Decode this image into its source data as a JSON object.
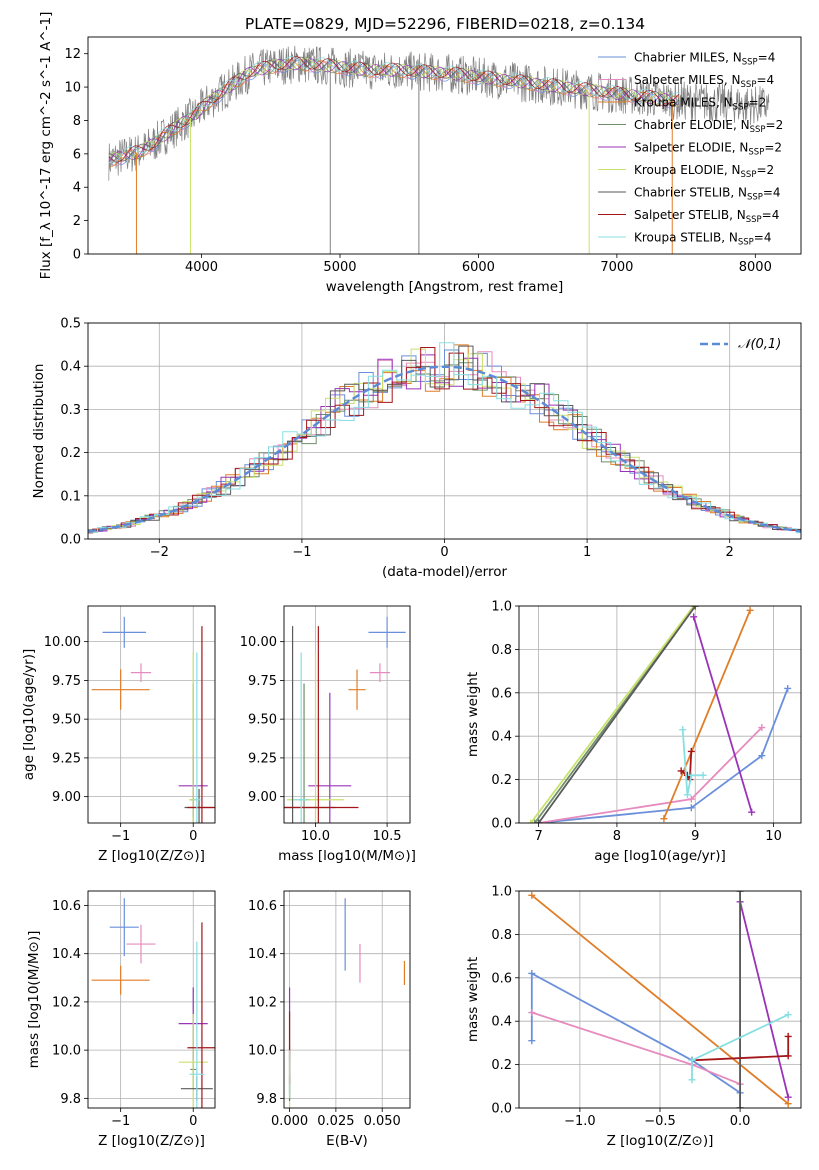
{
  "figure": {
    "title": "PLATE=0829, MJD=52296, FIBERID=0218, z=0.134"
  },
  "colors": {
    "Chabrier MILES": "#6a8fdb",
    "Salpeter MILES": "#e58bbf",
    "Kroupa MILES": "#e07d27",
    "Chabrier ELODIE": "#6f8f6a",
    "Salpeter ELODIE": "#9b33b8",
    "Kroupa ELODIE": "#c9e26b",
    "Chabrier STELIB": "#5a5a5a",
    "Salpeter STELIB": "#a3171b",
    "Kroupa STELIB": "#87dfe3",
    "data": "#808080",
    "gaussian": "#5b8ad6",
    "grid": "#b0b0b0"
  },
  "chart_data": [
    {
      "id": "spectrum",
      "type": "line",
      "xlabel": "wavelength [Angstrom, rest frame]",
      "ylabel": "Flux [f_λ 10^-17 erg cm^-2 s^-1 A^-1]",
      "xlim": [
        3180,
        8330
      ],
      "ylim": [
        0,
        13
      ],
      "xticks": [
        4000,
        5000,
        6000,
        7000,
        8000
      ],
      "yticks": [
        0,
        2,
        4,
        6,
        8,
        10,
        12
      ],
      "grid": false,
      "legend_position": "right",
      "legend": [
        {
          "name": "Chabrier MILES",
          "nssp": "4"
        },
        {
          "name": "Salpeter MILES",
          "nssp": "4"
        },
        {
          "name": "Kroupa MILES",
          "nssp": "2"
        },
        {
          "name": "Chabrier ELODIE",
          "nssp": "2"
        },
        {
          "name": "Salpeter ELODIE",
          "nssp": "2"
        },
        {
          "name": "Kroupa ELODIE",
          "nssp": "2"
        },
        {
          "name": "Chabrier STELIB",
          "nssp": "4"
        },
        {
          "name": "Salpeter STELIB",
          "nssp": "4"
        },
        {
          "name": "Kroupa STELIB",
          "nssp": "4"
        }
      ],
      "continuum": {
        "x": [
          3330,
          3450,
          3550,
          3650,
          3750,
          3850,
          3950,
          4050,
          4150,
          4250,
          4350,
          4450,
          4550,
          4700,
          4850,
          5000,
          5200,
          5400,
          5600,
          5800,
          6000,
          6200,
          6400,
          6600,
          6800,
          7000,
          7200,
          7400,
          7600,
          7800,
          8000,
          8100
        ],
        "y": [
          5.6,
          5.9,
          6.1,
          6.6,
          7.2,
          7.8,
          8.3,
          9.1,
          9.7,
          10.3,
          10.9,
          11.1,
          11.3,
          11.4,
          11.3,
          11.2,
          11.0,
          11.0,
          10.9,
          10.8,
          10.6,
          10.4,
          10.2,
          10.0,
          9.8,
          9.6,
          9.4,
          9.2,
          9.1,
          9.0,
          8.9,
          8.9
        ]
      }
    },
    {
      "id": "residuals",
      "type": "line",
      "xlabel": "(data-model)/error",
      "ylabel": "Normed distribution",
      "xlim": [
        -2.5,
        2.5
      ],
      "ylim": [
        0,
        0.5
      ],
      "xticks": [
        -2,
        -1,
        0,
        1,
        2
      ],
      "yticks": [
        0.0,
        0.1,
        0.2,
        0.3,
        0.4,
        0.5
      ],
      "grid": true,
      "legend_position": "top-right",
      "legend_label": "𝒩(0,1)",
      "gaussian": {
        "mu": 0,
        "sigma": 1
      }
    },
    {
      "id": "age_vs_Z",
      "type": "scatter",
      "xlabel": "Z [log10(Z/Z⊙)]",
      "ylabel": "age  [log10(age/yr)]",
      "xlim": [
        -1.45,
        0.3
      ],
      "ylim": [
        8.83,
        10.23
      ],
      "xticks": [
        -1,
        0
      ],
      "yticks": [
        9.0,
        9.25,
        9.5,
        9.75,
        10.0
      ],
      "grid": true,
      "points": [
        {
          "model": "Chabrier MILES",
          "x": -0.95,
          "y": 10.06,
          "xerr": 0.3,
          "yerr": 0.1
        },
        {
          "model": "Salpeter MILES",
          "x": -0.72,
          "y": 9.8,
          "xerr": 0.14,
          "yerr": 0.06
        },
        {
          "model": "Kroupa MILES",
          "x": -1.0,
          "y": 9.69,
          "xerr": 0.4,
          "yerr": 0.13
        },
        {
          "model": "Chabrier ELODIE",
          "x": 0.0,
          "y": 8.98,
          "xerr": 0.05,
          "yerr": 0.75
        },
        {
          "model": "Salpeter ELODIE",
          "x": 0.0,
          "y": 9.07,
          "xerr": 0.2,
          "yerr": 0.2
        },
        {
          "model": "Kroupa ELODIE",
          "x": 0.0,
          "y": 8.98,
          "xerr": 0.05,
          "yerr": 0.95
        },
        {
          "model": "Chabrier STELIB",
          "x": 0.08,
          "y": 8.93,
          "xerr": 0.2,
          "yerr": 0.12
        },
        {
          "model": "Salpeter STELIB",
          "x": 0.12,
          "y": 8.93,
          "xerr": 0.2,
          "yerr": 1.17
        },
        {
          "model": "Kroupa STELIB",
          "x": 0.05,
          "y": 8.98,
          "xerr": 0.05,
          "yerr": 0.95
        }
      ]
    },
    {
      "id": "age_vs_mass",
      "type": "scatter",
      "xlabel": "mass [log10(M/M⊙)]",
      "ylabel": "",
      "xlim": [
        9.78,
        10.66
      ],
      "ylim": [
        8.83,
        10.23
      ],
      "xticks": [
        10.0,
        10.5
      ],
      "yticks": [
        9.0,
        9.25,
        9.5,
        9.75,
        10.0
      ],
      "grid": true,
      "points": [
        {
          "model": "Chabrier MILES",
          "x": 10.5,
          "y": 10.06,
          "xerr": 0.13,
          "yerr": 0.1
        },
        {
          "model": "Salpeter MILES",
          "x": 10.45,
          "y": 9.8,
          "xerr": 0.07,
          "yerr": 0.06
        },
        {
          "model": "Kroupa MILES",
          "x": 10.29,
          "y": 9.69,
          "xerr": 0.06,
          "yerr": 0.13
        },
        {
          "model": "Chabrier ELODIE",
          "x": 9.92,
          "y": 8.98,
          "xerr": 0.04,
          "yerr": 0.75
        },
        {
          "model": "Salpeter ELODIE",
          "x": 10.1,
          "y": 9.07,
          "xerr": 0.15,
          "yerr": 0.6
        },
        {
          "model": "Kroupa ELODIE",
          "x": 10.0,
          "y": 8.98,
          "xerr": 0.2,
          "yerr": 0.95
        },
        {
          "model": "Chabrier STELIB",
          "x": 9.84,
          "y": 8.93,
          "xerr": 0.3,
          "yerr": 1.17
        },
        {
          "model": "Salpeter STELIB",
          "x": 10.02,
          "y": 8.93,
          "xerr": 0.28,
          "yerr": 1.17
        },
        {
          "model": "Kroupa STELIB",
          "x": 9.9,
          "y": 8.98,
          "xerr": 0.05,
          "yerr": 0.95
        }
      ]
    },
    {
      "id": "weight_vs_age",
      "type": "line",
      "xlabel": "age  [log10(age/yr)]",
      "ylabel": "mass weight",
      "xlim": [
        6.75,
        10.35
      ],
      "ylim": [
        0,
        1
      ],
      "xticks": [
        7,
        8,
        9,
        10
      ],
      "yticks": [
        0.0,
        0.2,
        0.4,
        0.6,
        0.8,
        1.0
      ],
      "grid": true,
      "series": [
        {
          "model": "Chabrier MILES",
          "x": [
            7.0,
            8.95,
            9.85,
            10.18
          ],
          "y": [
            0.0,
            0.07,
            0.31,
            0.62
          ]
        },
        {
          "model": "Salpeter MILES",
          "x": [
            7.0,
            8.95,
            9.85
          ],
          "y": [
            0.0,
            0.11,
            0.44
          ]
        },
        {
          "model": "Kroupa MILES",
          "x": [
            8.6,
            9.7
          ],
          "y": [
            0.02,
            0.98
          ]
        },
        {
          "model": "Chabrier ELODIE",
          "x": [
            6.95,
            9.0
          ],
          "y": [
            0.0,
            1.0
          ]
        },
        {
          "model": "Salpeter ELODIE",
          "x": [
            8.98,
            9.72
          ],
          "y": [
            0.95,
            0.05
          ]
        },
        {
          "model": "Kroupa ELODIE",
          "x": [
            6.9,
            8.98
          ],
          "y": [
            0.0,
            1.0
          ]
        },
        {
          "model": "Chabrier STELIB",
          "x": [
            7.0,
            9.0
          ],
          "y": [
            0.0,
            1.0
          ]
        },
        {
          "model": "Salpeter STELIB",
          "x": [
            8.82,
            8.9,
            8.93,
            8.95
          ],
          "y": [
            0.24,
            0.22,
            0.2,
            0.33
          ]
        },
        {
          "model": "Kroupa STELIB",
          "x": [
            8.84,
            8.9,
            8.95,
            9.1
          ],
          "y": [
            0.43,
            0.13,
            0.22,
            0.22
          ]
        }
      ]
    },
    {
      "id": "mass_vs_Z",
      "type": "scatter",
      "xlabel": "Z [log10(Z/Z⊙)]",
      "ylabel": "mass [log10(M/M⊙)]",
      "xlim": [
        -1.45,
        0.3
      ],
      "ylim": [
        9.76,
        10.66
      ],
      "xticks": [
        -1,
        0
      ],
      "yticks": [
        9.8,
        10.0,
        10.2,
        10.4,
        10.6
      ],
      "grid": true,
      "points": [
        {
          "model": "Chabrier MILES",
          "x": -0.95,
          "y": 10.51,
          "xerr": 0.2,
          "yerr": 0.12
        },
        {
          "model": "Salpeter MILES",
          "x": -0.72,
          "y": 10.44,
          "xerr": 0.2,
          "yerr": 0.08
        },
        {
          "model": "Kroupa MILES",
          "x": -1.0,
          "y": 10.29,
          "xerr": 0.4,
          "yerr": 0.06
        },
        {
          "model": "Chabrier ELODIE",
          "x": 0.0,
          "y": 9.92,
          "xerr": 0.04,
          "yerr": 0.08
        },
        {
          "model": "Salpeter ELODIE",
          "x": 0.0,
          "y": 10.11,
          "xerr": 0.2,
          "yerr": 0.15
        },
        {
          "model": "Kroupa ELODIE",
          "x": 0.0,
          "y": 9.95,
          "xerr": 0.2,
          "yerr": 0.2
        },
        {
          "model": "Chabrier STELIB",
          "x": 0.05,
          "y": 9.84,
          "xerr": 0.22,
          "yerr": 0.05
        },
        {
          "model": "Salpeter STELIB",
          "x": 0.12,
          "y": 10.01,
          "xerr": 0.2,
          "yerr": 0.52
        },
        {
          "model": "Kroupa STELIB",
          "x": 0.05,
          "y": 9.9,
          "xerr": 0.1,
          "yerr": 0.55
        }
      ]
    },
    {
      "id": "mass_vs_ebv",
      "type": "scatter",
      "xlabel": "E(B-V)",
      "ylabel": "",
      "xlim": [
        -0.003,
        0.065
      ],
      "ylim": [
        9.76,
        10.66
      ],
      "xticks": [
        0.0,
        0.025,
        0.05
      ],
      "yticks": [
        9.8,
        10.0,
        10.2,
        10.4,
        10.6
      ],
      "grid": true,
      "points": [
        {
          "model": "Chabrier MILES",
          "x": 0.03,
          "y": 10.48,
          "xerr": 0.0,
          "yerr": 0.15
        },
        {
          "model": "Salpeter MILES",
          "x": 0.038,
          "y": 10.36,
          "xerr": 0.0,
          "yerr": 0.08
        },
        {
          "model": "Kroupa MILES",
          "x": 0.062,
          "y": 10.32,
          "xerr": 0.0,
          "yerr": 0.05
        },
        {
          "model": "Chabrier ELODIE",
          "x": 0.0,
          "y": 9.92,
          "xerr": 0.0,
          "yerr": 0.1
        },
        {
          "model": "Salpeter ELODIE",
          "x": 0.0,
          "y": 10.11,
          "xerr": 0.0,
          "yerr": 0.15
        },
        {
          "model": "Kroupa ELODIE",
          "x": 0.0,
          "y": 9.95,
          "xerr": 0.0,
          "yerr": 0.2
        },
        {
          "model": "Chabrier STELIB",
          "x": 0.0,
          "y": 9.84,
          "xerr": 0.0,
          "yerr": 0.05
        },
        {
          "model": "Salpeter STELIB",
          "x": 0.0,
          "y": 10.01,
          "xerr": 0.0,
          "yerr": 0.15
        },
        {
          "model": "Kroupa STELIB",
          "x": 0.0,
          "y": 9.9,
          "xerr": 0.0,
          "yerr": 0.1
        }
      ]
    },
    {
      "id": "weight_vs_Z",
      "type": "line",
      "xlabel": "Z [log10(Z/Z⊙)]",
      "ylabel": "mass weight",
      "xlim": [
        -1.38,
        0.38
      ],
      "ylim": [
        0,
        1
      ],
      "xticks": [
        -1.0,
        -0.5,
        0.0
      ],
      "yticks": [
        0.0,
        0.2,
        0.4,
        0.6,
        0.8,
        1.0
      ],
      "grid": true,
      "series": [
        {
          "model": "Chabrier MILES",
          "x": [
            -1.3,
            -1.3,
            -0.3,
            0.0
          ],
          "y": [
            0.31,
            0.62,
            0.22,
            0.07
          ]
        },
        {
          "model": "Salpeter MILES",
          "x": [
            -1.3,
            -0.3,
            0.0
          ],
          "y": [
            0.44,
            0.2,
            0.11
          ]
        },
        {
          "model": "Kroupa MILES",
          "x": [
            -1.3,
            0.3
          ],
          "y": [
            0.98,
            0.02
          ]
        },
        {
          "model": "Chabrier ELODIE",
          "x": [
            0.0,
            0.0
          ],
          "y": [
            0.0,
            1.0
          ]
        },
        {
          "model": "Salpeter ELODIE",
          "x": [
            0.0,
            0.3
          ],
          "y": [
            0.95,
            0.05
          ]
        },
        {
          "model": "Kroupa ELODIE",
          "x": [
            0.0,
            0.0
          ],
          "y": [
            0.0,
            1.0
          ]
        },
        {
          "model": "Chabrier STELIB",
          "x": [
            0.0,
            0.0
          ],
          "y": [
            0.0,
            1.0
          ]
        },
        {
          "model": "Salpeter STELIB",
          "x": [
            -0.3,
            0.3,
            0.3
          ],
          "y": [
            0.22,
            0.24,
            0.33
          ]
        },
        {
          "model": "Kroupa STELIB",
          "x": [
            -0.3,
            -0.3,
            0.3
          ],
          "y": [
            0.13,
            0.22,
            0.43
          ]
        }
      ]
    }
  ]
}
